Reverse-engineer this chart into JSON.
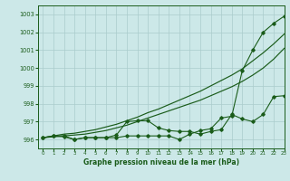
{
  "title": "Graphe pression niveau de la mer (hPa)",
  "bg_color": "#cce8e8",
  "grid_color": "#aacccc",
  "line_color": "#1a5c1a",
  "xlim": [
    -0.5,
    23
  ],
  "ylim": [
    995.5,
    1003.5
  ],
  "yticks": [
    996,
    997,
    998,
    999,
    1000,
    1001,
    1002,
    1003
  ],
  "xticks": [
    0,
    1,
    2,
    3,
    4,
    5,
    6,
    7,
    8,
    9,
    10,
    11,
    12,
    13,
    14,
    15,
    16,
    17,
    18,
    19,
    20,
    21,
    22,
    23
  ],
  "line_zigzag_top": [
    996.1,
    996.2,
    996.2,
    996.0,
    996.1,
    996.1,
    996.1,
    996.1,
    996.2,
    996.2,
    996.2,
    996.2,
    996.2,
    996.0,
    996.3,
    996.5,
    996.6,
    997.2,
    997.3,
    999.85,
    1001.0,
    1002.0,
    1002.5,
    1002.9
  ],
  "line_zigzag_bot": [
    996.1,
    996.2,
    996.15,
    996.0,
    996.1,
    996.1,
    996.1,
    996.25,
    997.0,
    997.05,
    997.05,
    996.65,
    996.5,
    996.45,
    996.45,
    996.3,
    996.45,
    996.55,
    997.4,
    997.15,
    997.0,
    997.4,
    998.4,
    998.45
  ],
  "line_smooth_upper": [
    996.1,
    996.2,
    996.3,
    996.35,
    996.45,
    996.55,
    996.7,
    996.85,
    997.05,
    997.25,
    997.5,
    997.7,
    997.95,
    998.2,
    998.45,
    998.7,
    999.0,
    999.3,
    999.6,
    999.95,
    1000.4,
    1000.85,
    1001.35,
    1001.9
  ],
  "line_smooth_lower": [
    996.1,
    996.15,
    996.2,
    996.25,
    996.3,
    996.4,
    996.5,
    996.65,
    996.8,
    997.0,
    997.2,
    997.4,
    997.6,
    997.8,
    998.0,
    998.2,
    998.45,
    998.7,
    998.95,
    999.25,
    999.6,
    1000.0,
    1000.5,
    1001.1
  ]
}
